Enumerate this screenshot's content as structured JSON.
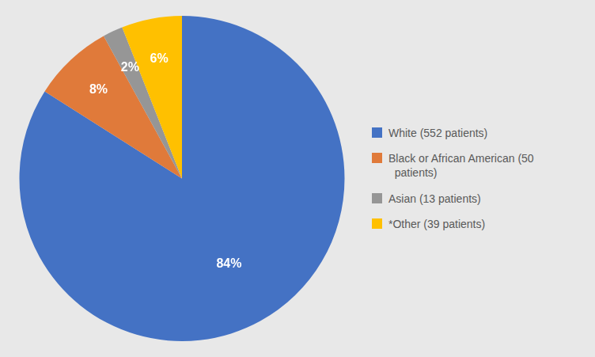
{
  "chart_data": {
    "type": "pie",
    "categories": [
      "White (552 patients)",
      "Black or African American (50\n  patients)",
      "Asian (13 patients)",
      "*Other (39 patients)"
    ],
    "values": [
      84,
      8,
      2,
      6
    ],
    "value_labels": [
      "84%",
      "8%",
      "2%",
      "6%"
    ],
    "colors": [
      "#4472C4",
      "#E07A3A",
      "#969696",
      "#FFC000"
    ],
    "data_labels": true,
    "legend": "right"
  }
}
